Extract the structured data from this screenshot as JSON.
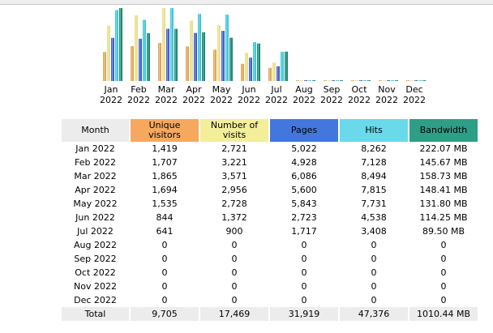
{
  "colors": {
    "visitors": "#e0a65c",
    "visits": "#e8e08c",
    "pages": "#4060d0",
    "hits": "#40c8d8",
    "bandwidth": "#208870",
    "header_month": "#ececec",
    "header_visitors": "#f7a85f",
    "header_visits": "#f2ee9a",
    "header_pages": "#4477dd",
    "header_hits": "#6ad9ea",
    "header_bandwidth": "#2e9e86"
  },
  "chart_data": {
    "type": "bar",
    "categories": [
      "Jan 2022",
      "Feb 2022",
      "Mar 2022",
      "Apr 2022",
      "May 2022",
      "Jun 2022",
      "Jul 2022",
      "Aug 2022",
      "Sep 2022",
      "Oct 2022",
      "Nov 2022",
      "Dec 2022"
    ],
    "series": [
      {
        "name": "Unique visitors",
        "values": [
          1419,
          1707,
          1865,
          1694,
          1535,
          844,
          641,
          0,
          0,
          0,
          0,
          0
        ]
      },
      {
        "name": "Number of visits",
        "values": [
          2721,
          3221,
          3571,
          2956,
          2728,
          1372,
          900,
          0,
          0,
          0,
          0,
          0
        ]
      },
      {
        "name": "Pages",
        "values": [
          5022,
          4928,
          6086,
          5600,
          5843,
          2723,
          1717,
          0,
          0,
          0,
          0,
          0
        ]
      },
      {
        "name": "Hits",
        "values": [
          8262,
          7128,
          8494,
          7815,
          7731,
          4538,
          3408,
          0,
          0,
          0,
          0,
          0
        ]
      },
      {
        "name": "Bandwidth",
        "values": [
          222.07,
          145.67,
          158.73,
          148.41,
          131.8,
          114.25,
          89.5,
          0,
          0,
          0,
          0,
          0
        ]
      }
    ]
  },
  "months": [
    {
      "mon": "Jan",
      "year": "2022"
    },
    {
      "mon": "Feb",
      "year": "2022"
    },
    {
      "mon": "Mar",
      "year": "2022"
    },
    {
      "mon": "Apr",
      "year": "2022"
    },
    {
      "mon": "May",
      "year": "2022"
    },
    {
      "mon": "Jun",
      "year": "2022"
    },
    {
      "mon": "Jul",
      "year": "2022"
    },
    {
      "mon": "Aug",
      "year": "2022"
    },
    {
      "mon": "Sep",
      "year": "2022"
    },
    {
      "mon": "Oct",
      "year": "2022"
    },
    {
      "mon": "Nov",
      "year": "2022"
    },
    {
      "mon": "Dec",
      "year": "2022"
    }
  ],
  "table": {
    "headers": {
      "month": "Month",
      "visitors": "Unique visitors",
      "visits": "Number of visits",
      "pages": "Pages",
      "hits": "Hits",
      "bandwidth": "Bandwidth"
    },
    "rows": [
      {
        "month": "Jan 2022",
        "visitors": "1,419",
        "visits": "2,721",
        "pages": "5,022",
        "hits": "8,262",
        "bandwidth": "222.07 MB"
      },
      {
        "month": "Feb 2022",
        "visitors": "1,707",
        "visits": "3,221",
        "pages": "4,928",
        "hits": "7,128",
        "bandwidth": "145.67 MB"
      },
      {
        "month": "Mar 2022",
        "visitors": "1,865",
        "visits": "3,571",
        "pages": "6,086",
        "hits": "8,494",
        "bandwidth": "158.73 MB"
      },
      {
        "month": "Apr 2022",
        "visitors": "1,694",
        "visits": "2,956",
        "pages": "5,600",
        "hits": "7,815",
        "bandwidth": "148.41 MB"
      },
      {
        "month": "May 2022",
        "visitors": "1,535",
        "visits": "2,728",
        "pages": "5,843",
        "hits": "7,731",
        "bandwidth": "131.80 MB"
      },
      {
        "month": "Jun 2022",
        "visitors": "844",
        "visits": "1,372",
        "pages": "2,723",
        "hits": "4,538",
        "bandwidth": "114.25 MB"
      },
      {
        "month": "Jul 2022",
        "visitors": "641",
        "visits": "900",
        "pages": "1,717",
        "hits": "3,408",
        "bandwidth": "89.50 MB"
      },
      {
        "month": "Aug 2022",
        "visitors": "0",
        "visits": "0",
        "pages": "0",
        "hits": "0",
        "bandwidth": "0"
      },
      {
        "month": "Sep 2022",
        "visitors": "0",
        "visits": "0",
        "pages": "0",
        "hits": "0",
        "bandwidth": "0"
      },
      {
        "month": "Oct 2022",
        "visitors": "0",
        "visits": "0",
        "pages": "0",
        "hits": "0",
        "bandwidth": "0"
      },
      {
        "month": "Nov 2022",
        "visitors": "0",
        "visits": "0",
        "pages": "0",
        "hits": "0",
        "bandwidth": "0"
      },
      {
        "month": "Dec 2022",
        "visitors": "0",
        "visits": "0",
        "pages": "0",
        "hits": "0",
        "bandwidth": "0"
      }
    ],
    "total": {
      "month": "Total",
      "visitors": "9,705",
      "visits": "17,469",
      "pages": "31,919",
      "hits": "47,376",
      "bandwidth": "1010.44 MB"
    }
  }
}
